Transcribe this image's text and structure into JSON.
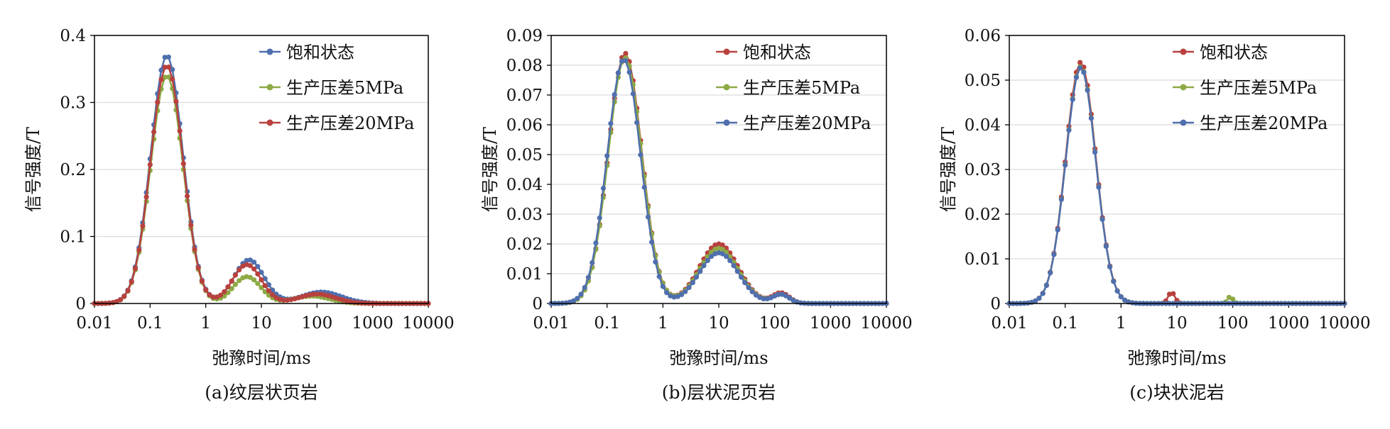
{
  "chart_data": [
    {
      "type": "line",
      "caption": "(a)纹层状页岩",
      "xlabel": "弛豫时间/ms",
      "ylabel": "信号强度/T",
      "xscale": "log",
      "xlim": [
        0.01,
        10000
      ],
      "ylim": [
        0,
        0.4
      ],
      "x_ticks": [
        "0.01",
        "0.1",
        "1",
        "10",
        "100",
        "1000",
        "10000"
      ],
      "y_ticks": [
        "0",
        "0.1",
        "0.2",
        "0.3",
        "0.4"
      ],
      "grid": "horizontal",
      "legend_position": "top-right",
      "series": [
        {
          "name": "饱和状态",
          "color": "#4f6fae",
          "peaks": [
            {
              "x": 0.2,
              "y": 0.37,
              "w": 0.29
            },
            {
              "x": 6.0,
              "y": 0.065,
              "w": 0.27
            },
            {
              "x": 120,
              "y": 0.017,
              "w": 0.36
            }
          ]
        },
        {
          "name": "生产压差5MPa",
          "color": "#8daa45",
          "peaks": [
            {
              "x": 0.2,
              "y": 0.34,
              "w": 0.29
            },
            {
              "x": 5.5,
              "y": 0.04,
              "w": 0.25
            },
            {
              "x": 80,
              "y": 0.011,
              "w": 0.33
            }
          ]
        },
        {
          "name": "生产压差20MPa",
          "color": "#b8413e",
          "peaks": [
            {
              "x": 0.2,
              "y": 0.355,
              "w": 0.29
            },
            {
              "x": 5.5,
              "y": 0.058,
              "w": 0.26
            },
            {
              "x": 100,
              "y": 0.014,
              "w": 0.33
            }
          ]
        }
      ]
    },
    {
      "type": "line",
      "caption": "(b)层状泥页岩",
      "xlabel": "弛豫时间/ms",
      "ylabel": "信号强度/T",
      "xscale": "log",
      "xlim": [
        0.01,
        10000
      ],
      "ylim": [
        0,
        0.09
      ],
      "x_ticks": [
        "0.01",
        "0.1",
        "1",
        "10",
        "100",
        "1000",
        "10000"
      ],
      "y_ticks": [
        "0",
        "0.01",
        "0.02",
        "0.03",
        "0.04",
        "0.05",
        "0.06",
        "0.07",
        "0.08",
        "0.09"
      ],
      "grid": "horizontal",
      "legend_position": "top-right",
      "series": [
        {
          "name": "饱和状态",
          "color": "#b8413e",
          "peaks": [
            {
              "x": 0.21,
              "y": 0.084,
              "w": 0.3
            },
            {
              "x": 10,
              "y": 0.02,
              "w": 0.35
            },
            {
              "x": 130,
              "y": 0.0035,
              "w": 0.15
            }
          ]
        },
        {
          "name": "生产压差5MPa",
          "color": "#8daa45",
          "peaks": [
            {
              "x": 0.21,
              "y": 0.0825,
              "w": 0.3
            },
            {
              "x": 10,
              "y": 0.0185,
              "w": 0.35
            },
            {
              "x": 130,
              "y": 0.003,
              "w": 0.15
            }
          ]
        },
        {
          "name": "生产压差20MPa",
          "color": "#4f6fae",
          "peaks": [
            {
              "x": 0.2,
              "y": 0.082,
              "w": 0.3
            },
            {
              "x": 10,
              "y": 0.017,
              "w": 0.35
            },
            {
              "x": 130,
              "y": 0.003,
              "w": 0.15
            }
          ]
        }
      ]
    },
    {
      "type": "line",
      "caption": "(c)块状泥岩",
      "xlabel": "弛豫时间/ms",
      "ylabel": "信号强度/T",
      "xscale": "log",
      "xlim": [
        0.01,
        10000
      ],
      "ylim": [
        0,
        0.06
      ],
      "x_ticks": [
        "0.01",
        "0.1",
        "1",
        "10",
        "100",
        "1000",
        "10000"
      ],
      "y_ticks": [
        "0",
        "0.01",
        "0.02",
        "0.03",
        "0.04",
        "0.05",
        "0.06"
      ],
      "grid": "horizontal",
      "legend_position": "top-right",
      "series": [
        {
          "name": "饱和状态",
          "color": "#b8413e",
          "peaks": [
            {
              "x": 0.19,
              "y": 0.054,
              "w": 0.27
            },
            {
              "x": 8,
              "y": 0.0025,
              "w": 0.06
            }
          ]
        },
        {
          "name": "生产压差5MPa",
          "color": "#8daa45",
          "peaks": [
            {
              "x": 0.19,
              "y": 0.053,
              "w": 0.27
            },
            {
              "x": 90,
              "y": 0.0015,
              "w": 0.05
            }
          ]
        },
        {
          "name": "生产压差20MPa",
          "color": "#4f6fae",
          "peaks": [
            {
              "x": 0.19,
              "y": 0.0528,
              "w": 0.27
            }
          ]
        }
      ]
    }
  ]
}
